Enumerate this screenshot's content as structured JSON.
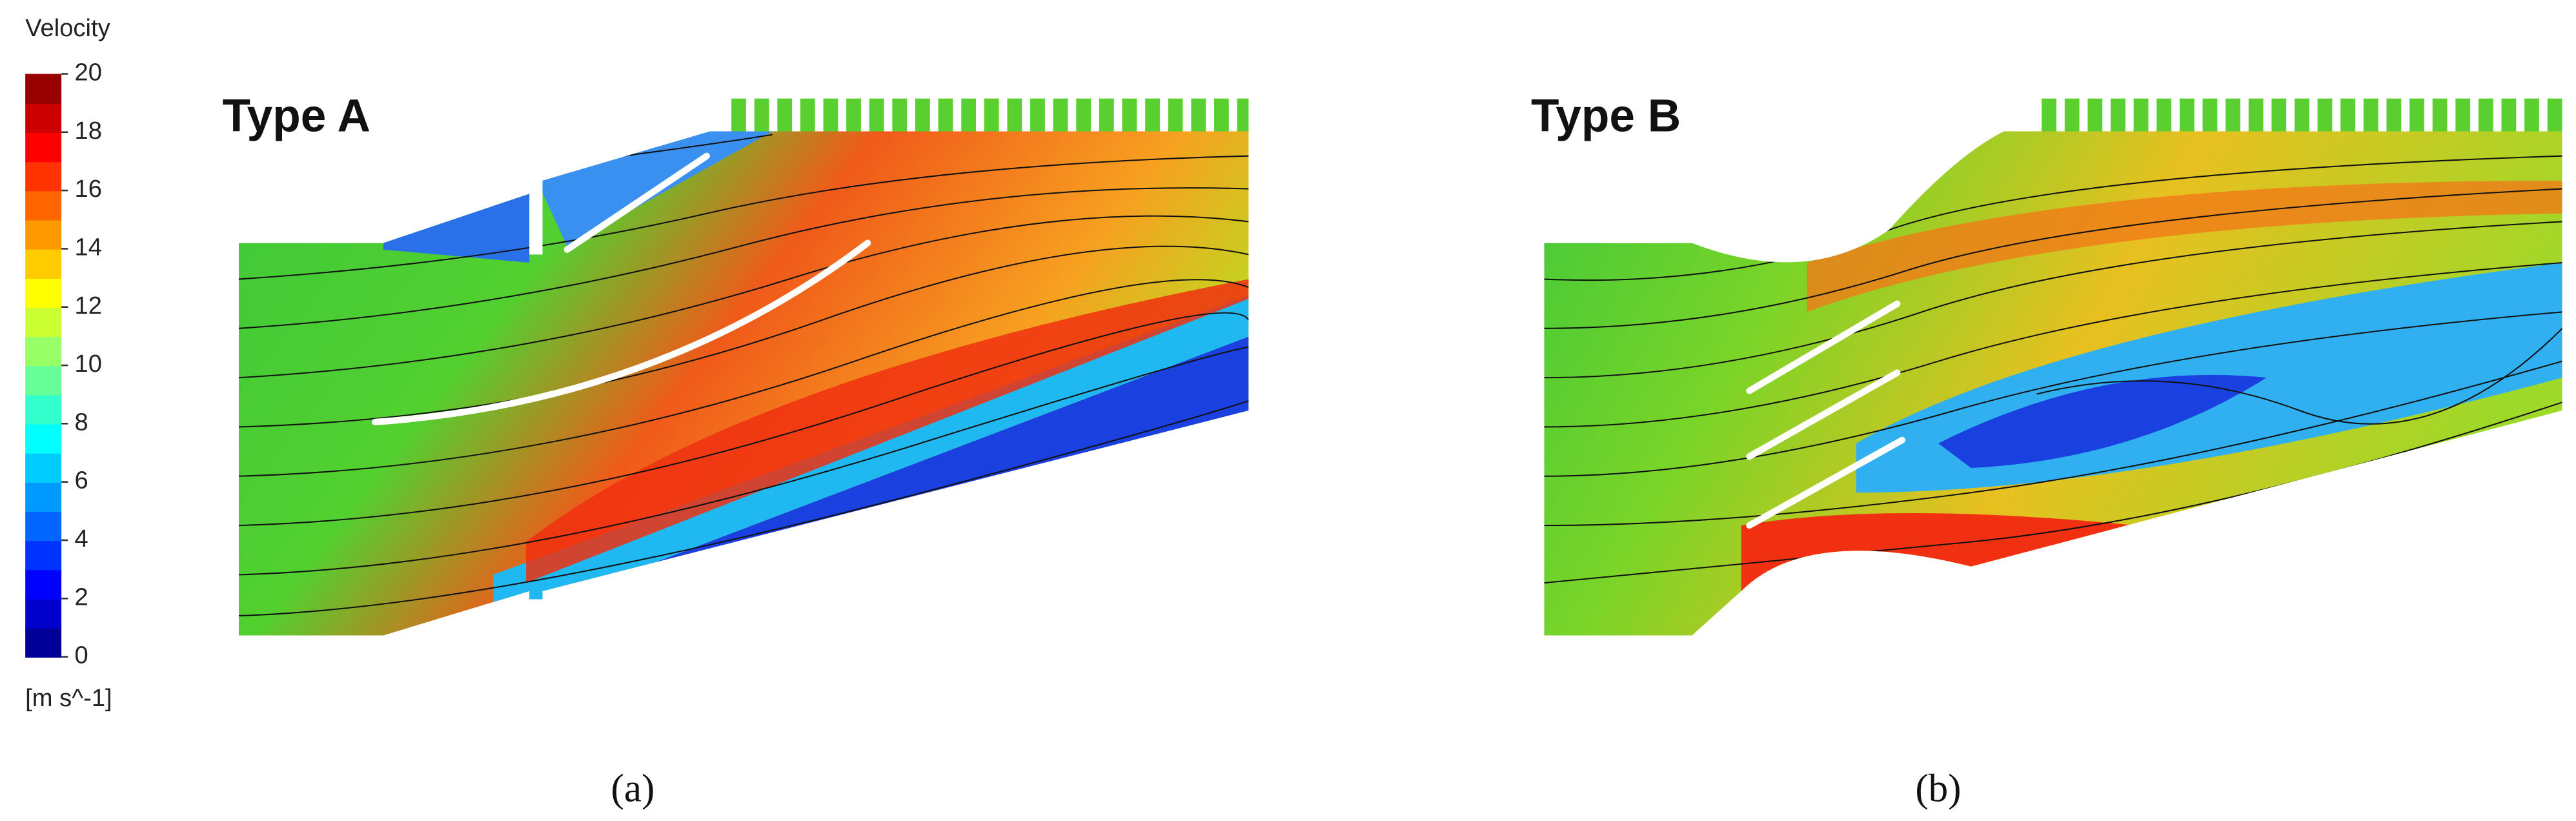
{
  "legend": {
    "title": "Velocity",
    "ticks": [
      0,
      2,
      4,
      6,
      8,
      10,
      12,
      14,
      16,
      18,
      20
    ],
    "unit": "[m s^-1]"
  },
  "panels": [
    {
      "label": "Type A",
      "caption": "(a)"
    },
    {
      "label": "Type B",
      "caption": "(b)"
    }
  ]
}
